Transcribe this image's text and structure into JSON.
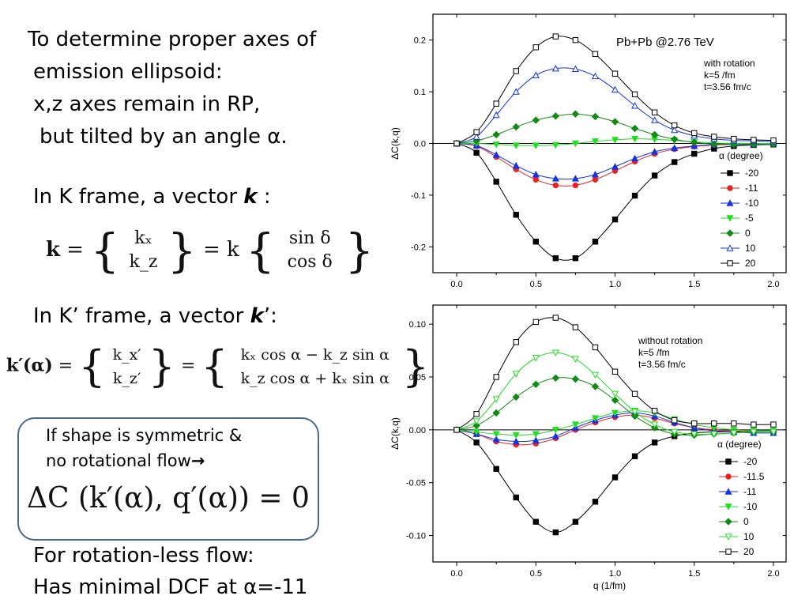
{
  "text": {
    "line1": "To determine proper axes of",
    "line2": "emission ellipsoid:",
    "line3": "x,z axes remain in RP,",
    "line4": "but tilted by an angle α.",
    "kframe_prefix": "In K frame, a vector ",
    "kframe_k": "k",
    "kframe_suffix": " :",
    "kpframe_prefix": "In K’ frame, a vector ",
    "kpframe_k": "k",
    "kpframe_suffix": "’:",
    "box_line1": "If shape is symmetric &",
    "box_line2": "no rotational flow",
    "box_arrow": "→",
    "bottom1": "For rotation-less flow:",
    "bottom2": "Has minimal DCF at α=-11"
  },
  "math": {
    "eq1_lhs": "k",
    "eq1_equals": "=",
    "eq1_top": "kₓ",
    "eq1_bot": "k_z",
    "eq1_mid": "= k",
    "eq1_top2": "sin δ",
    "eq1_bot2": "cos δ",
    "eq2_lhs": "k′(α)",
    "eq2_equals": "=",
    "eq2_top": "k_x′",
    "eq2_bot": "k_z′",
    "eq2_top2": "kₓ cos α − k_z sin α",
    "eq2_bot2": "k_z cos α + kₓ sin α",
    "eq3": "ΔC (k′(α), q′(α)) = 0"
  },
  "chart_data": [
    {
      "type": "line",
      "annotation_title": "Pb+Pb @2.76 TeV",
      "annotation": [
        "with rotation",
        "k=5 /fm",
        "t=3.56 fm/c"
      ],
      "xlabel": "",
      "ylabel": "ΔC(k,q)",
      "xlim": [
        -0.15,
        2.08
      ],
      "ylim": [
        -0.25,
        0.25
      ],
      "xticks": [
        "0.0",
        "0.5",
        "1.0",
        "1.5",
        "2.0"
      ],
      "yticks": [
        "-0.2",
        "-0.1",
        "0.0",
        "0.1",
        "0.2"
      ],
      "legend_title": "α (degree)",
      "legend_position": "bottom-right",
      "series": [
        {
          "name": "-20",
          "color": "#000000",
          "marker": "square-filled",
          "x": [
            0,
            0.125,
            0.25,
            0.375,
            0.5,
            0.625,
            0.75,
            0.875,
            1.0,
            1.125,
            1.25,
            1.375,
            1.5,
            1.625,
            1.75,
            1.875,
            2.0
          ],
          "y": [
            0,
            -0.018,
            -0.074,
            -0.138,
            -0.19,
            -0.222,
            -0.222,
            -0.19,
            -0.147,
            -0.101,
            -0.062,
            -0.036,
            -0.02,
            -0.01,
            -0.005,
            -0.003,
            -0.002
          ]
        },
        {
          "name": "-11",
          "color": "#e8231f",
          "marker": "circle-filled",
          "x": [
            0,
            0.125,
            0.25,
            0.375,
            0.5,
            0.625,
            0.75,
            0.875,
            1.0,
            1.125,
            1.25,
            1.375,
            1.5,
            1.625,
            1.75,
            1.875,
            2.0
          ],
          "y": [
            0,
            -0.005,
            -0.026,
            -0.05,
            -0.07,
            -0.081,
            -0.081,
            -0.07,
            -0.053,
            -0.035,
            -0.02,
            -0.011,
            -0.006,
            -0.003,
            -0.002,
            -0.001,
            -0.001
          ]
        },
        {
          "name": "-10",
          "color": "#1432e6",
          "marker": "triangle-filled",
          "x": [
            0,
            0.125,
            0.25,
            0.375,
            0.5,
            0.625,
            0.75,
            0.875,
            1.0,
            1.125,
            1.25,
            1.375,
            1.5,
            1.625,
            1.75,
            1.875,
            2.0
          ],
          "y": [
            0,
            -0.004,
            -0.022,
            -0.043,
            -0.06,
            -0.068,
            -0.068,
            -0.06,
            -0.045,
            -0.029,
            -0.016,
            -0.009,
            -0.005,
            -0.002,
            -0.001,
            -0.001,
            0
          ]
        },
        {
          "name": "-5",
          "color": "#22dd22",
          "marker": "triangle-down-filled",
          "x": [
            0,
            0.125,
            0.25,
            0.375,
            0.5,
            0.625,
            0.75,
            0.875,
            1.0,
            1.125,
            1.25,
            1.375,
            1.5,
            1.625,
            1.75,
            1.875,
            2.0
          ],
          "y": [
            0,
            0.0,
            -0.002,
            -0.004,
            -0.004,
            -0.003,
            0.0,
            0.004,
            0.007,
            0.009,
            0.008,
            0.006,
            0.003,
            0.001,
            0.0,
            0.0,
            0.0
          ]
        },
        {
          "name": "0",
          "color": "#138a13",
          "marker": "diamond-filled",
          "x": [
            0,
            0.125,
            0.25,
            0.375,
            0.5,
            0.625,
            0.75,
            0.875,
            1.0,
            1.125,
            1.25,
            1.375,
            1.5,
            1.625,
            1.75,
            1.875,
            2.0
          ],
          "y": [
            0,
            0.005,
            0.017,
            0.032,
            0.045,
            0.053,
            0.057,
            0.052,
            0.042,
            0.029,
            0.017,
            0.008,
            0.002,
            -0.001,
            -0.002,
            -0.002,
            -0.002
          ]
        },
        {
          "name": "10",
          "color": "#1432e6",
          "marker": "triangle-open",
          "x": [
            0,
            0.125,
            0.25,
            0.375,
            0.5,
            0.625,
            0.75,
            0.875,
            1.0,
            1.125,
            1.25,
            1.375,
            1.5,
            1.625,
            1.75,
            1.875,
            2.0
          ],
          "y": [
            0,
            0.013,
            0.055,
            0.1,
            0.132,
            0.145,
            0.144,
            0.13,
            0.104,
            0.073,
            0.045,
            0.026,
            0.015,
            0.009,
            0.006,
            0.005,
            0.004
          ]
        },
        {
          "name": "20",
          "color": "#000000",
          "marker": "square-open",
          "x": [
            0,
            0.125,
            0.25,
            0.375,
            0.5,
            0.625,
            0.75,
            0.875,
            1.0,
            1.125,
            1.25,
            1.375,
            1.5,
            1.625,
            1.75,
            1.875,
            2.0
          ],
          "y": [
            0,
            0.022,
            0.077,
            0.14,
            0.186,
            0.207,
            0.2,
            0.173,
            0.135,
            0.095,
            0.06,
            0.035,
            0.02,
            0.013,
            0.009,
            0.007,
            0.006
          ]
        }
      ]
    },
    {
      "type": "line",
      "annotation_title": "",
      "annotation": [
        "without rotation",
        "k=5 /fm",
        "t=3.56 fm/c"
      ],
      "xlabel": "q (1/fm)",
      "ylabel": "ΔC(k,q)",
      "xlim": [
        -0.15,
        2.08
      ],
      "ylim": [
        -0.125,
        0.118
      ],
      "xticks": [
        "0.0",
        "0.5",
        "1.0",
        "1.5",
        "2.0"
      ],
      "yticks": [
        "-0.10",
        "-0.05",
        "0.00",
        "0.05",
        "0.10"
      ],
      "legend_title": "α (degree)",
      "legend_position": "bottom-right",
      "series": [
        {
          "name": "-20",
          "color": "#000000",
          "marker": "square-filled",
          "x": [
            0,
            0.125,
            0.25,
            0.375,
            0.5,
            0.625,
            0.75,
            0.875,
            1.0,
            1.125,
            1.25,
            1.375,
            1.5,
            1.625,
            1.75,
            1.875,
            2.0
          ],
          "y": [
            0,
            -0.012,
            -0.037,
            -0.064,
            -0.087,
            -0.097,
            -0.087,
            -0.068,
            -0.045,
            -0.025,
            -0.012,
            -0.006,
            -0.003,
            -0.002,
            -0.002,
            -0.001,
            -0.001
          ]
        },
        {
          "name": "-11.5",
          "color": "#e8231f",
          "marker": "circle-filled",
          "x": [
            0,
            0.125,
            0.25,
            0.375,
            0.5,
            0.625,
            0.75,
            0.875,
            1.0,
            1.125,
            1.25,
            1.375,
            1.5,
            1.625,
            1.75,
            1.875,
            2.0
          ],
          "y": [
            0,
            -0.004,
            -0.011,
            -0.014,
            -0.013,
            -0.008,
            0.0,
            0.007,
            0.012,
            0.014,
            0.011,
            0.006,
            0.002,
            0.0,
            -0.001,
            -0.002,
            -0.002
          ]
        },
        {
          "name": "-11",
          "color": "#1432e6",
          "marker": "triangle-filled",
          "x": [
            0,
            0.125,
            0.25,
            0.375,
            0.5,
            0.625,
            0.75,
            0.875,
            1.0,
            1.125,
            1.25,
            1.375,
            1.5,
            1.625,
            1.75,
            1.875,
            2.0
          ],
          "y": [
            0,
            -0.004,
            -0.009,
            -0.011,
            -0.01,
            -0.006,
            0.002,
            0.009,
            0.014,
            0.016,
            0.013,
            0.007,
            0.002,
            -0.001,
            -0.002,
            -0.003,
            -0.003
          ]
        },
        {
          "name": "-10",
          "color": "#22dd22",
          "marker": "triangle-down-filled",
          "x": [
            0,
            0.125,
            0.25,
            0.375,
            0.5,
            0.625,
            0.75,
            0.875,
            1.0,
            1.125,
            1.25,
            1.375,
            1.5,
            1.625,
            1.75,
            1.875,
            2.0
          ],
          "y": [
            0,
            -0.002,
            -0.004,
            -0.005,
            -0.004,
            0.0,
            0.005,
            0.011,
            0.016,
            0.018,
            0.016,
            0.01,
            0.005,
            0.002,
            0.0,
            -0.001,
            -0.001
          ]
        },
        {
          "name": "0",
          "color": "#138a13",
          "marker": "diamond-filled",
          "x": [
            0,
            0.125,
            0.25,
            0.375,
            0.5,
            0.625,
            0.75,
            0.875,
            1.0,
            1.125,
            1.25,
            1.375,
            1.5,
            1.625,
            1.75,
            1.875,
            2.0
          ],
          "y": [
            0,
            0.004,
            0.016,
            0.031,
            0.043,
            0.049,
            0.048,
            0.041,
            0.028,
            0.013,
            0.002,
            -0.004,
            -0.005,
            -0.004,
            -0.003,
            -0.002,
            -0.002
          ]
        },
        {
          "name": "10",
          "color": "#22dd22",
          "marker": "triangle-down-open",
          "x": [
            0,
            0.125,
            0.25,
            0.375,
            0.5,
            0.625,
            0.75,
            0.875,
            1.0,
            1.125,
            1.25,
            1.375,
            1.5,
            1.625,
            1.75,
            1.875,
            2.0
          ],
          "y": [
            0,
            0.008,
            0.029,
            0.053,
            0.068,
            0.073,
            0.067,
            0.052,
            0.034,
            0.017,
            0.005,
            -0.002,
            -0.004,
            -0.004,
            -0.003,
            -0.002,
            -0.002
          ]
        },
        {
          "name": "20",
          "color": "#000000",
          "marker": "square-open",
          "x": [
            0,
            0.125,
            0.25,
            0.375,
            0.5,
            0.625,
            0.75,
            0.875,
            1.0,
            1.125,
            1.25,
            1.375,
            1.5,
            1.625,
            1.75,
            1.875,
            2.0
          ],
          "y": [
            0,
            0.015,
            0.05,
            0.083,
            0.102,
            0.106,
            0.097,
            0.078,
            0.055,
            0.034,
            0.018,
            0.009,
            0.006,
            0.006,
            0.006,
            0.005,
            0.005
          ]
        }
      ]
    }
  ]
}
